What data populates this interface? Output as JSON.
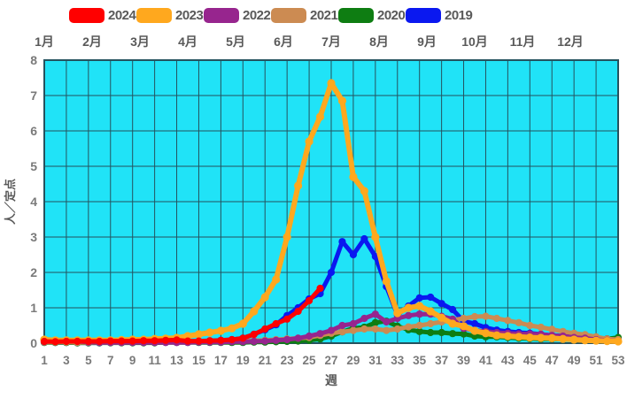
{
  "legend": {
    "items": [
      {
        "label": "2024",
        "color": "#FF0000"
      },
      {
        "label": "2023",
        "color": "#FFA81E"
      },
      {
        "label": "2022",
        "color": "#97258E"
      },
      {
        "label": "2021",
        "color": "#CC8B52"
      },
      {
        "label": "2020",
        "color": "#0E7D12"
      },
      {
        "label": "2019",
        "color": "#0A18F0"
      }
    ]
  },
  "months": {
    "labels": [
      "1月",
      "2月",
      "3月",
      "4月",
      "5月",
      "6月",
      "7月",
      "8月",
      "9月",
      "10月",
      "11月",
      "12月"
    ]
  },
  "axes": {
    "x_title": "週",
    "y_title": "人／定点",
    "x_ticks": [
      "1",
      "3",
      "5",
      "7",
      "9",
      "11",
      "13",
      "15",
      "17",
      "19",
      "21",
      "23",
      "25",
      "27",
      "29",
      "31",
      "33",
      "35",
      "37",
      "39",
      "41",
      "43",
      "45",
      "47",
      "49",
      "51",
      "53"
    ],
    "y_ticks": [
      "0",
      "1",
      "2",
      "3",
      "4",
      "5",
      "6",
      "7",
      "8"
    ]
  },
  "colors": {
    "plot_bg": "#20E3F7",
    "grid": "#25525E",
    "tick_text": "#7A7A7A",
    "label_text": "#595959"
  },
  "chart_data": {
    "type": "line",
    "title": "",
    "xlabel": "週",
    "ylabel": "人／定点",
    "x_range": [
      1,
      53
    ],
    "ylim": [
      0,
      8
    ],
    "grid": true,
    "legend_position": "top",
    "x_note": "x = week number 1..53; vertical gridlines every 2 weeks at odd weeks",
    "series": [
      {
        "name": "2024",
        "color": "#FF0000",
        "values": [
          0.05,
          0.04,
          0.05,
          0.05,
          0.05,
          0.05,
          0.06,
          0.06,
          0.06,
          0.07,
          0.07,
          0.08,
          0.09,
          0.06,
          0.06,
          0.07,
          0.08,
          0.1,
          0.14,
          0.25,
          0.4,
          0.55,
          0.68,
          0.9,
          1.2,
          1.55
        ]
      },
      {
        "name": "2023",
        "color": "#FFA81E",
        "values": [
          0.1,
          0.08,
          0.08,
          0.08,
          0.08,
          0.08,
          0.08,
          0.09,
          0.1,
          0.1,
          0.12,
          0.13,
          0.15,
          0.2,
          0.25,
          0.3,
          0.35,
          0.42,
          0.55,
          0.9,
          1.3,
          1.8,
          3.0,
          4.45,
          5.7,
          6.4,
          7.35,
          6.85,
          4.7,
          4.3,
          3.0,
          1.75,
          0.85,
          1.0,
          1.05,
          0.9,
          0.72,
          0.55,
          0.48,
          0.35,
          0.28,
          0.22,
          0.2,
          0.18,
          0.16,
          0.15,
          0.14,
          0.12,
          0.1,
          0.08,
          0.07,
          0.06,
          0.05
        ]
      },
      {
        "name": "2022",
        "color": "#97258E",
        "values": [
          0.04,
          0.06,
          0.06,
          0.05,
          0.03,
          0.02,
          0.02,
          0.02,
          0.02,
          0.02,
          0.02,
          0.02,
          0.02,
          0.02,
          0.03,
          0.03,
          0.03,
          0.04,
          0.04,
          0.05,
          0.06,
          0.08,
          0.1,
          0.14,
          0.2,
          0.27,
          0.36,
          0.5,
          0.55,
          0.7,
          0.82,
          0.6,
          0.7,
          0.78,
          0.82,
          0.82,
          0.76,
          0.68,
          0.42,
          0.36,
          0.33,
          0.3,
          0.28,
          0.26,
          0.26,
          0.25,
          0.22,
          0.2,
          0.16,
          0.14,
          0.1,
          0.08,
          0.06
        ]
      },
      {
        "name": "2021",
        "color": "#CC8B52",
        "values": [
          0.03,
          0.03,
          0.03,
          0.02,
          0.02,
          0.02,
          0.02,
          0.02,
          0.03,
          0.03,
          0.03,
          0.03,
          0.03,
          0.04,
          0.04,
          0.05,
          0.05,
          0.06,
          0.06,
          0.07,
          0.08,
          0.1,
          0.12,
          0.14,
          0.16,
          0.22,
          0.28,
          0.32,
          0.36,
          0.4,
          0.4,
          0.36,
          0.4,
          0.46,
          0.5,
          0.55,
          0.6,
          0.65,
          0.7,
          0.75,
          0.76,
          0.7,
          0.64,
          0.58,
          0.5,
          0.45,
          0.39,
          0.33,
          0.28,
          0.24,
          0.18,
          0.12,
          0.1
        ]
      },
      {
        "name": "2020",
        "color": "#0E7D12",
        "values": [
          0.02,
          0.02,
          0.02,
          0.01,
          0.01,
          0.01,
          0.01,
          0.01,
          0.01,
          0.01,
          0.01,
          0.02,
          0.02,
          0.02,
          0.02,
          0.02,
          0.02,
          0.02,
          0.02,
          0.03,
          0.03,
          0.04,
          0.05,
          0.06,
          0.08,
          0.12,
          0.2,
          0.32,
          0.42,
          0.45,
          0.58,
          0.62,
          0.48,
          0.38,
          0.33,
          0.3,
          0.3,
          0.27,
          0.26,
          0.2,
          0.18,
          0.18,
          0.16,
          0.14,
          0.13,
          0.12,
          0.12,
          0.11,
          0.1,
          0.1,
          0.1,
          0.12,
          0.16
        ]
      },
      {
        "name": "2019",
        "color": "#0A18F0",
        "values": [
          0.03,
          0.02,
          0.02,
          0.01,
          0.01,
          0.01,
          0.02,
          0.02,
          0.03,
          0.03,
          0.03,
          0.03,
          0.04,
          0.04,
          0.05,
          0.06,
          0.08,
          0.1,
          0.14,
          0.25,
          0.38,
          0.52,
          0.78,
          1.0,
          1.25,
          1.4,
          2.0,
          2.87,
          2.5,
          2.95,
          2.45,
          1.6,
          0.8,
          1.05,
          1.28,
          1.3,
          1.12,
          0.95,
          0.62,
          0.55,
          0.44,
          0.37,
          0.33,
          0.3,
          0.28,
          0.25,
          0.22,
          0.2,
          0.18,
          0.16,
          0.14,
          0.12,
          0.12
        ]
      }
    ]
  }
}
